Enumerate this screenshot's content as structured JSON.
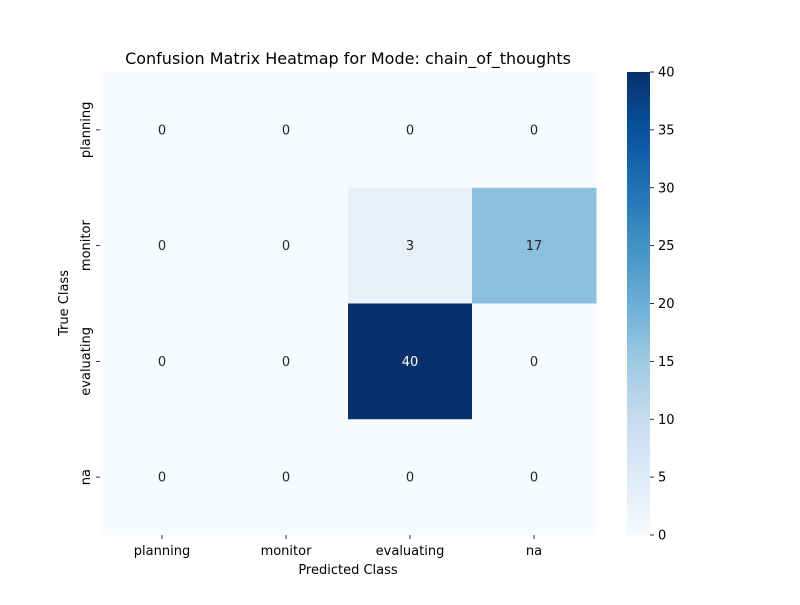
{
  "chart_data": {
    "type": "heatmap",
    "title": "Confusion Matrix Heatmap for Mode: chain_of_thoughts",
    "xlabel": "Predicted Class",
    "ylabel": "True Class",
    "x_categories": [
      "planning",
      "monitor",
      "evaluating",
      "na"
    ],
    "y_categories": [
      "planning",
      "monitor",
      "evaluating",
      "na"
    ],
    "values": [
      [
        0,
        0,
        0,
        0
      ],
      [
        0,
        0,
        3,
        17
      ],
      [
        0,
        0,
        40,
        0
      ],
      [
        0,
        0,
        0,
        0
      ]
    ],
    "colormap": "Blues",
    "vmin": 0,
    "vmax": 40,
    "colorbar_ticks": [
      0,
      5,
      10,
      15,
      20,
      25,
      30,
      35,
      40
    ],
    "grid": false,
    "colors": {
      "low": "#f7fbff",
      "high": "#08306b",
      "annotation_dark_bg": "#ffffff",
      "annotation_light_bg": "#262626"
    }
  }
}
